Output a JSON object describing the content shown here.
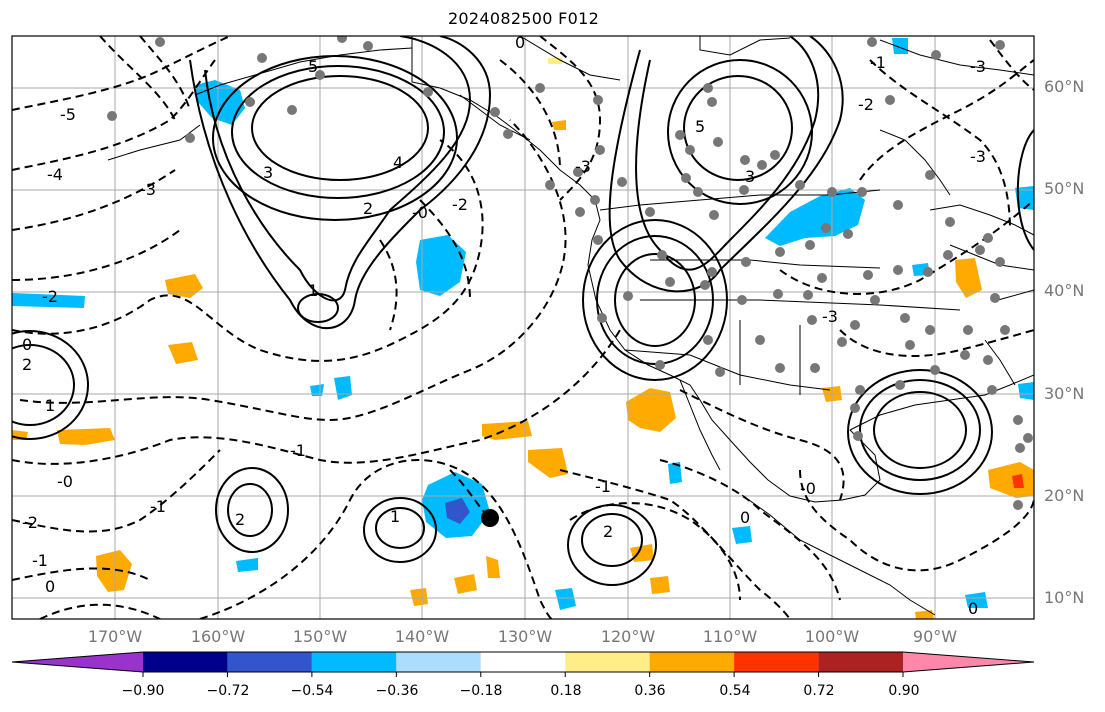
{
  "title": "2024082500 F012",
  "longitude_labels": [
    "170°W",
    "160°W",
    "150°W",
    "140°W",
    "130°W",
    "120°W",
    "110°W",
    "100°W",
    "90°W"
  ],
  "latitude_labels": [
    "60°N",
    "50°N",
    "40°N",
    "30°N",
    "20°N",
    "10°N"
  ],
  "colorbar": {
    "ticks": [
      "−0.90",
      "−0.72",
      "−0.54",
      "−0.36",
      "−0.18",
      "0.18",
      "0.36",
      "0.54",
      "0.72",
      "0.90"
    ],
    "colors": [
      "#9933cc",
      "#000088",
      "#3355cc",
      "#00bbff",
      "#aaddff",
      "#ffffff",
      "#ffee88",
      "#ffaa00",
      "#ff3300",
      "#aa2222",
      "#ff88aa"
    ]
  },
  "contour_labels": [
    {
      "text": "5",
      "kind": "pos"
    },
    {
      "text": "5",
      "kind": "pos"
    },
    {
      "text": "4",
      "kind": "pos"
    },
    {
      "text": "3",
      "kind": "pos"
    },
    {
      "text": "3",
      "kind": "pos"
    },
    {
      "text": "2",
      "kind": "pos"
    },
    {
      "text": "1",
      "kind": "pos"
    },
    {
      "text": "1",
      "kind": "pos"
    },
    {
      "text": "2",
      "kind": "pos"
    },
    {
      "text": "2",
      "kind": "pos"
    },
    {
      "text": "1",
      "kind": "pos"
    },
    {
      "text": "2",
      "kind": "pos"
    },
    {
      "text": "0",
      "kind": "neg"
    },
    {
      "text": "0",
      "kind": "neg"
    },
    {
      "text": "-1",
      "kind": "neg"
    },
    {
      "text": "-2",
      "kind": "neg"
    },
    {
      "text": "-3",
      "kind": "neg"
    },
    {
      "text": "-5",
      "kind": "neg"
    },
    {
      "text": "-4",
      "kind": "neg"
    },
    {
      "text": "-2",
      "kind": "neg"
    },
    {
      "text": "-3",
      "kind": "neg"
    },
    {
      "text": "-2",
      "kind": "neg"
    },
    {
      "text": "-3",
      "kind": "neg"
    },
    {
      "text": "-1",
      "kind": "neg"
    },
    {
      "text": "-0",
      "kind": "neg"
    },
    {
      "text": "-1",
      "kind": "neg"
    },
    {
      "text": "-2",
      "kind": "neg"
    },
    {
      "text": "-1",
      "kind": "neg"
    },
    {
      "text": "0",
      "kind": "neg"
    },
    {
      "text": "-1",
      "kind": "neg"
    },
    {
      "text": "0",
      "kind": "neg"
    },
    {
      "text": "-0",
      "kind": "neg"
    },
    {
      "text": "-3",
      "kind": "neg"
    },
    {
      "text": "-0",
      "kind": "neg"
    },
    {
      "text": "0",
      "kind": "neg"
    },
    {
      "text": "-3",
      "kind": "neg"
    }
  ]
}
